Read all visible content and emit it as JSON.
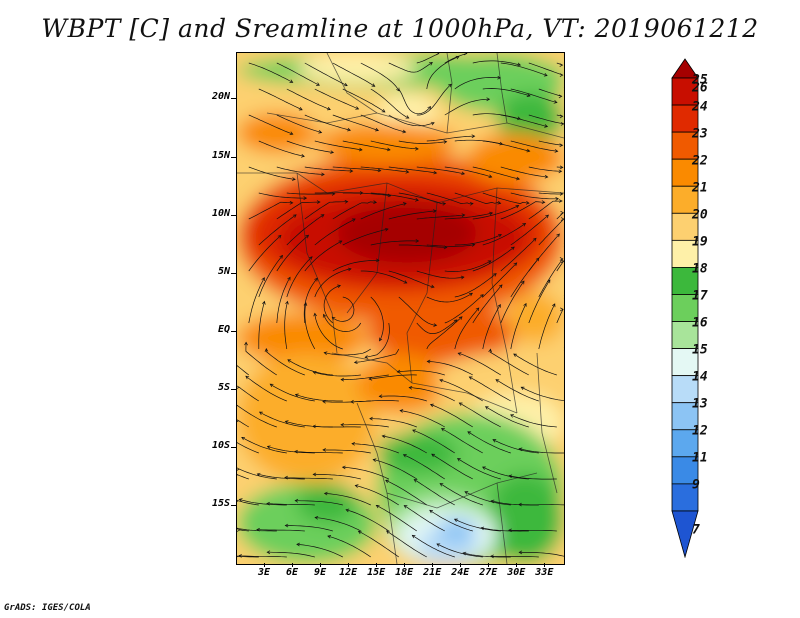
{
  "title": "WBPT [C] and Sreamline at 1000hPa, VT: 2019061212",
  "footer": "GrADS: IGES/COLA",
  "map": {
    "lon_range": [
      0,
      35
    ],
    "lat_range": [
      -20,
      24
    ],
    "y_ticks": [
      {
        "lat": 20,
        "label": "20N"
      },
      {
        "lat": 15,
        "label": "15N"
      },
      {
        "lat": 10,
        "label": "10N"
      },
      {
        "lat": 5,
        "label": "5N"
      },
      {
        "lat": 0,
        "label": "EQ"
      },
      {
        "lat": -5,
        "label": "5S"
      },
      {
        "lat": -10,
        "label": "10S"
      },
      {
        "lat": -15,
        "label": "15S"
      }
    ],
    "x_ticks": [
      {
        "lon": 3,
        "label": "3E"
      },
      {
        "lon": 6,
        "label": "6E"
      },
      {
        "lon": 9,
        "label": "9E"
      },
      {
        "lon": 12,
        "label": "12E"
      },
      {
        "lon": 15,
        "label": "15E"
      },
      {
        "lon": 18,
        "label": "18E"
      },
      {
        "lon": 21,
        "label": "21E"
      },
      {
        "lon": 24,
        "label": "24E"
      },
      {
        "lon": 27,
        "label": "27E"
      },
      {
        "lon": 30,
        "label": "30E"
      },
      {
        "lon": 33,
        "label": "33E"
      }
    ]
  },
  "colorbar": {
    "levels": [
      {
        "label": "26",
        "color": "#a50000"
      },
      {
        "label": "25",
        "color": "#c80e00"
      },
      {
        "label": "24",
        "color": "#e02a00"
      },
      {
        "label": "23",
        "color": "#f05a00"
      },
      {
        "label": "22",
        "color": "#fa8a00"
      },
      {
        "label": "21",
        "color": "#fcad2a"
      },
      {
        "label": "20",
        "color": "#fdd070"
      },
      {
        "label": "19",
        "color": "#fef0a8"
      },
      {
        "label": "18",
        "color": "#3cb83c"
      },
      {
        "label": "17",
        "color": "#6ccf5c"
      },
      {
        "label": "16",
        "color": "#a8e49a"
      },
      {
        "label": "15",
        "color": "#e4f8f4"
      },
      {
        "label": "14",
        "color": "#b8dcf8"
      },
      {
        "label": "13",
        "color": "#8cc4f4"
      },
      {
        "label": "12",
        "color": "#5ca8ee"
      },
      {
        "label": "11",
        "color": "#3a8ae6"
      },
      {
        "label": "9",
        "color": "#2a6ede"
      },
      {
        "label": "7",
        "color": "#1e55d2"
      }
    ]
  }
}
